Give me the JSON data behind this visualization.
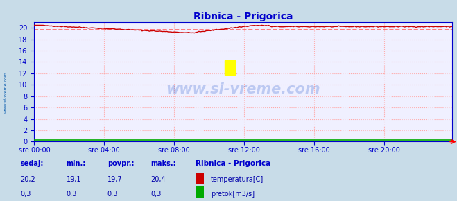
{
  "title": "Ribnica - Prigorica",
  "bg_color": "#c8dce8",
  "plot_bg_color": "#f0f0ff",
  "grid_color": "#ffaaaa",
  "grid_linestyle": ":",
  "xlim": [
    0,
    287
  ],
  "ylim": [
    0,
    21
  ],
  "yticks": [
    0,
    2,
    4,
    6,
    8,
    10,
    12,
    14,
    16,
    18,
    20
  ],
  "xtick_labels": [
    "sre 00:00",
    "sre 04:00",
    "sre 08:00",
    "sre 12:00",
    "sre 16:00",
    "sre 20:00"
  ],
  "xtick_positions": [
    0,
    48,
    96,
    144,
    192,
    240
  ],
  "temp_color": "#cc0000",
  "pretok_color": "#00aa00",
  "avg_line_color": "#ff6666",
  "avg_value": 19.7,
  "temp_min": 19.1,
  "temp_max": 20.4,
  "temp_sedaj": 20.2,
  "temp_povpr": 19.7,
  "pretok_sedaj": 0.3,
  "pretok_min": 0.3,
  "pretok_povpr": 0.3,
  "pretok_max": 0.3,
  "watermark": "www.si-vreme.com",
  "title_color": "#0000cc",
  "axis_color": "#0000cc",
  "tick_color": "#0000cc",
  "spine_color": "#0000cc",
  "legend_title": "Ribnica - Prigorica",
  "stat_label_color": "#0000cc",
  "stat_value_color": "#0000aa",
  "side_label": "www.si-vreme.com",
  "side_label_color": "#0055aa"
}
